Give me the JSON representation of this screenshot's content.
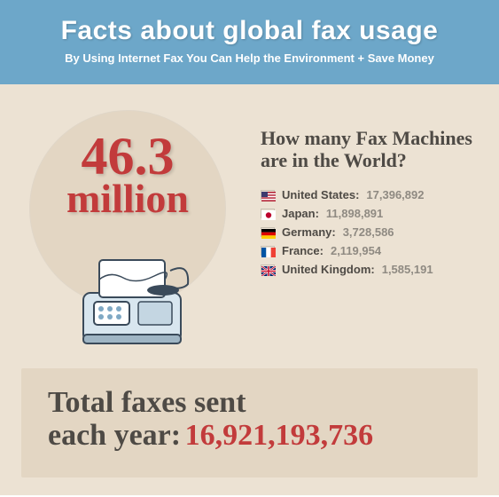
{
  "colors": {
    "header_bg": "#6da7c9",
    "main_bg": "#ece2d3",
    "circle_bg": "#e3d6c3",
    "accent_red": "#c23b3b",
    "text_dark": "#4e4a45",
    "text_muted": "#8f8a82",
    "total_bg": "#e3d6c3"
  },
  "header": {
    "title": "Facts about global fax usage",
    "subtitle": "By Using Internet Fax You Can Help the Environment + Save Money"
  },
  "hero": {
    "big_number": "46.3",
    "big_unit": "million",
    "question": "How many Fax Machines are in the World?"
  },
  "countries": [
    {
      "name": "United States:",
      "value": "17,396,892",
      "flag_colors": [
        "#b22234",
        "#ffffff",
        "#3c3b6e"
      ]
    },
    {
      "name": "Japan:",
      "value": "11,898,891",
      "flag_colors": [
        "#ffffff",
        "#bc002d"
      ]
    },
    {
      "name": "Germany:",
      "value": "3,728,586",
      "flag_colors": [
        "#000000",
        "#dd0000",
        "#ffce00"
      ]
    },
    {
      "name": "France:",
      "value": "2,119,954",
      "flag_colors": [
        "#0055a4",
        "#ffffff",
        "#ef4135"
      ]
    },
    {
      "name": "United Kingdom:",
      "value": "1,585,191",
      "flag_colors": [
        "#012169",
        "#ffffff",
        "#c8102e"
      ]
    }
  ],
  "total": {
    "label_line1": "Total faxes sent",
    "label_line2": "each year:",
    "value": "16,921,193,736"
  }
}
